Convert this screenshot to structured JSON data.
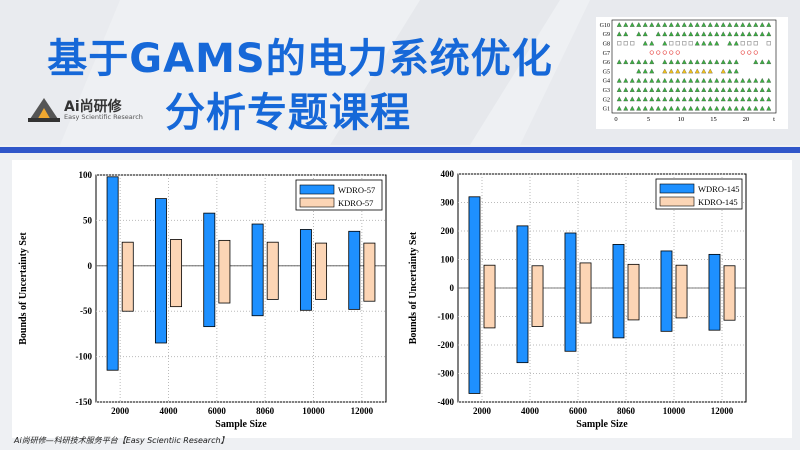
{
  "header": {
    "title_line1": "基于GAMS的电力系统优化",
    "title_line2": "分析专题课程"
  },
  "logo": {
    "name": "Ai尚研修",
    "subtitle": "Easy Scientific Research"
  },
  "footer": {
    "text": "Ai尚研修—科研技术服务平台【Easy Scientiic Research】"
  },
  "colors": {
    "title": "#1668d8",
    "bar_blue": "#1e90ff",
    "bar_peach": "#fcd5b5",
    "divider": "#2f56c9"
  },
  "inset": {
    "row_labels": [
      "G10",
      "G9",
      "G8",
      "G7",
      "G6",
      "G5",
      "G4",
      "G3",
      "G2",
      "G1"
    ],
    "x_ticks": [
      "0",
      "5",
      "10",
      "15",
      "20",
      "t"
    ]
  },
  "chart_data": [
    {
      "type": "bar",
      "ylabel": "Bounds of Uncertainty Set",
      "xlabel": "Sample Size",
      "categories": [
        "2000",
        "4000",
        "6000",
        "8060",
        "10000",
        "12000"
      ],
      "ylim": [
        -150,
        100
      ],
      "yticks": [
        "100",
        "50",
        "0",
        "-50",
        "-100",
        "-150"
      ],
      "legend_position": "top-right",
      "series": [
        {
          "name": "WDRO-57",
          "color": "#1e90ff",
          "upper": [
            98,
            74,
            58,
            46,
            40,
            38
          ],
          "lower": [
            -115,
            -85,
            -67,
            -55,
            -49,
            -48
          ]
        },
        {
          "name": "KDRO-57",
          "color": "#fcd5b5",
          "upper": [
            26,
            29,
            28,
            26,
            25,
            25
          ],
          "lower": [
            -50,
            -45,
            -41,
            -37,
            -37,
            -39
          ]
        }
      ]
    },
    {
      "type": "bar",
      "ylabel": "Bounds of Uncertainty Set",
      "xlabel": "Sample Size",
      "categories": [
        "2000",
        "4000",
        "6000",
        "8060",
        "10000",
        "12000"
      ],
      "ylim": [
        -400,
        400
      ],
      "yticks": [
        "400",
        "300",
        "200",
        "100",
        "0",
        "-100",
        "-200",
        "-300",
        "-400"
      ],
      "legend_position": "top-right",
      "series": [
        {
          "name": "WDRO-145",
          "color": "#1e90ff",
          "upper": [
            320,
            218,
            193,
            153,
            130,
            118
          ],
          "lower": [
            -370,
            -262,
            -222,
            -175,
            -152,
            -148
          ]
        },
        {
          "name": "KDRO-145",
          "color": "#fcd5b5",
          "upper": [
            80,
            78,
            88,
            83,
            80,
            78
          ],
          "lower": [
            -140,
            -135,
            -123,
            -112,
            -105,
            -113
          ]
        }
      ]
    }
  ]
}
